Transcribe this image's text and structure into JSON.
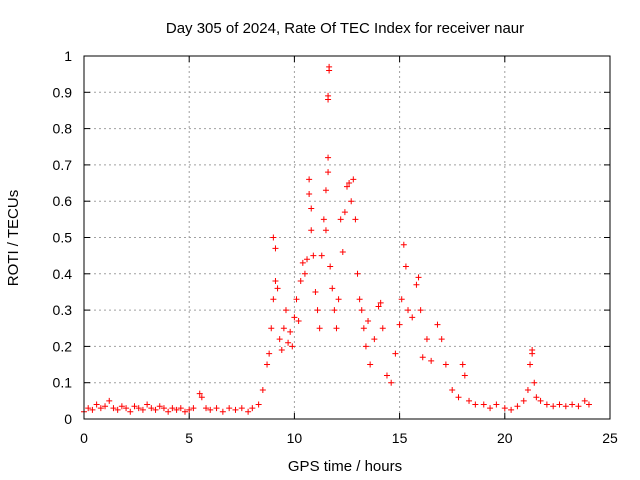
{
  "chart_data": {
    "type": "scatter",
    "title": "Day 305 of 2024, Rate Of TEC Index for receiver naur",
    "xlabel": "GPS time / hours",
    "ylabel": "ROTI / TECUs",
    "xlim": [
      0,
      25
    ],
    "ylim": [
      0,
      1
    ],
    "xticks": [
      "0",
      "5",
      "10",
      "15",
      "20",
      "25"
    ],
    "yticks": [
      "0",
      "0.1",
      "0.2",
      "0.3",
      "0.4",
      "0.5",
      "0.6",
      "0.7",
      "0.8",
      "0.9",
      "1"
    ],
    "grid": true,
    "marker": "+",
    "color": "#ff0000",
    "series": [
      {
        "points": [
          [
            0.0,
            0.02
          ],
          [
            0.2,
            0.03
          ],
          [
            0.4,
            0.025
          ],
          [
            0.6,
            0.04
          ],
          [
            0.8,
            0.03
          ],
          [
            1.0,
            0.035
          ],
          [
            1.2,
            0.05
          ],
          [
            1.4,
            0.03
          ],
          [
            1.6,
            0.025
          ],
          [
            1.8,
            0.035
          ],
          [
            2.0,
            0.03
          ],
          [
            2.2,
            0.02
          ],
          [
            2.4,
            0.035
          ],
          [
            2.6,
            0.03
          ],
          [
            2.8,
            0.025
          ],
          [
            3.0,
            0.04
          ],
          [
            3.2,
            0.03
          ],
          [
            3.4,
            0.025
          ],
          [
            3.6,
            0.035
          ],
          [
            3.8,
            0.03
          ],
          [
            4.0,
            0.02
          ],
          [
            4.2,
            0.03
          ],
          [
            4.4,
            0.025
          ],
          [
            4.6,
            0.03
          ],
          [
            4.8,
            0.02
          ],
          [
            5.0,
            0.025
          ],
          [
            5.2,
            0.03
          ],
          [
            5.5,
            0.07
          ],
          [
            5.6,
            0.06
          ],
          [
            5.8,
            0.03
          ],
          [
            6.0,
            0.025
          ],
          [
            6.3,
            0.03
          ],
          [
            6.6,
            0.02
          ],
          [
            6.9,
            0.03
          ],
          [
            7.2,
            0.025
          ],
          [
            7.5,
            0.03
          ],
          [
            7.8,
            0.02
          ],
          [
            8.0,
            0.03
          ],
          [
            8.3,
            0.04
          ],
          [
            8.5,
            0.08
          ],
          [
            8.7,
            0.15
          ],
          [
            8.8,
            0.18
          ],
          [
            8.9,
            0.25
          ],
          [
            9.0,
            0.33
          ],
          [
            9.0,
            0.5
          ],
          [
            9.1,
            0.38
          ],
          [
            9.1,
            0.47
          ],
          [
            9.2,
            0.36
          ],
          [
            9.3,
            0.22
          ],
          [
            9.4,
            0.19
          ],
          [
            9.5,
            0.25
          ],
          [
            9.6,
            0.3
          ],
          [
            9.7,
            0.21
          ],
          [
            9.8,
            0.24
          ],
          [
            9.9,
            0.2
          ],
          [
            10.0,
            0.28
          ],
          [
            10.1,
            0.33
          ],
          [
            10.2,
            0.27
          ],
          [
            10.3,
            0.38
          ],
          [
            10.4,
            0.43
          ],
          [
            10.5,
            0.4
          ],
          [
            10.6,
            0.44
          ],
          [
            10.7,
            0.62
          ],
          [
            10.7,
            0.66
          ],
          [
            10.8,
            0.58
          ],
          [
            10.8,
            0.52
          ],
          [
            10.9,
            0.45
          ],
          [
            11.0,
            0.35
          ],
          [
            11.1,
            0.3
          ],
          [
            11.2,
            0.25
          ],
          [
            11.3,
            0.45
          ],
          [
            11.4,
            0.55
          ],
          [
            11.5,
            0.52
          ],
          [
            11.5,
            0.63
          ],
          [
            11.6,
            0.68
          ],
          [
            11.6,
            0.72
          ],
          [
            11.6,
            0.88
          ],
          [
            11.6,
            0.89
          ],
          [
            11.65,
            0.96
          ],
          [
            11.65,
            0.97
          ],
          [
            11.7,
            0.42
          ],
          [
            11.8,
            0.36
          ],
          [
            11.9,
            0.3
          ],
          [
            12.0,
            0.25
          ],
          [
            12.1,
            0.33
          ],
          [
            12.2,
            0.55
          ],
          [
            12.3,
            0.46
          ],
          [
            12.4,
            0.57
          ],
          [
            12.5,
            0.64
          ],
          [
            12.6,
            0.65
          ],
          [
            12.7,
            0.6
          ],
          [
            12.8,
            0.66
          ],
          [
            12.9,
            0.55
          ],
          [
            13.0,
            0.4
          ],
          [
            13.1,
            0.33
          ],
          [
            13.2,
            0.3
          ],
          [
            13.3,
            0.25
          ],
          [
            13.4,
            0.2
          ],
          [
            13.5,
            0.27
          ],
          [
            13.6,
            0.15
          ],
          [
            13.8,
            0.22
          ],
          [
            14.0,
            0.31
          ],
          [
            14.1,
            0.32
          ],
          [
            14.2,
            0.25
          ],
          [
            14.4,
            0.12
          ],
          [
            14.6,
            0.1
          ],
          [
            14.8,
            0.18
          ],
          [
            15.0,
            0.26
          ],
          [
            15.1,
            0.33
          ],
          [
            15.2,
            0.48
          ],
          [
            15.3,
            0.42
          ],
          [
            15.4,
            0.3
          ],
          [
            15.6,
            0.28
          ],
          [
            15.8,
            0.37
          ],
          [
            15.9,
            0.39
          ],
          [
            16.0,
            0.3
          ],
          [
            16.1,
            0.17
          ],
          [
            16.3,
            0.22
          ],
          [
            16.5,
            0.16
          ],
          [
            16.8,
            0.26
          ],
          [
            17.0,
            0.22
          ],
          [
            17.2,
            0.15
          ],
          [
            17.5,
            0.08
          ],
          [
            17.8,
            0.06
          ],
          [
            18.0,
            0.15
          ],
          [
            18.1,
            0.12
          ],
          [
            18.3,
            0.05
          ],
          [
            18.6,
            0.04
          ],
          [
            19.0,
            0.04
          ],
          [
            19.3,
            0.03
          ],
          [
            19.6,
            0.04
          ],
          [
            20.0,
            0.03
          ],
          [
            20.3,
            0.025
          ],
          [
            20.6,
            0.035
          ],
          [
            20.9,
            0.05
          ],
          [
            21.1,
            0.08
          ],
          [
            21.2,
            0.15
          ],
          [
            21.3,
            0.18
          ],
          [
            21.3,
            0.19
          ],
          [
            21.4,
            0.1
          ],
          [
            21.5,
            0.06
          ],
          [
            21.7,
            0.05
          ],
          [
            22.0,
            0.04
          ],
          [
            22.3,
            0.035
          ],
          [
            22.6,
            0.04
          ],
          [
            22.9,
            0.035
          ],
          [
            23.2,
            0.04
          ],
          [
            23.5,
            0.035
          ],
          [
            23.8,
            0.05
          ],
          [
            24.0,
            0.04
          ]
        ]
      }
    ]
  }
}
